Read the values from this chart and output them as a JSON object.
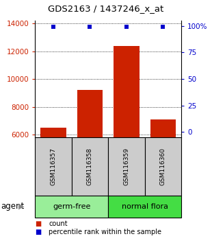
{
  "title": "GDS2163 / 1437246_x_at",
  "samples": [
    "GSM116357",
    "GSM116358",
    "GSM116359",
    "GSM116360"
  ],
  "counts": [
    6500,
    9200,
    12400,
    7100
  ],
  "percentiles": [
    99,
    99,
    99,
    99
  ],
  "ylim_left": [
    5800,
    14200
  ],
  "ylim_right": [
    -5,
    105
  ],
  "yticks_left": [
    6000,
    8000,
    10000,
    12000,
    14000
  ],
  "yticks_right": [
    0,
    25,
    50,
    75,
    100
  ],
  "bar_color": "#cc2200",
  "pct_color": "#0000cc",
  "groups": [
    {
      "label": "germ-free",
      "indices": [
        0,
        1
      ],
      "color": "#99ee99"
    },
    {
      "label": "normal flora",
      "indices": [
        2,
        3
      ],
      "color": "#44dd44"
    }
  ],
  "agent_label": "agent",
  "legend_count_label": "count",
  "legend_pct_label": "percentile rank within the sample",
  "sample_bg_color": "#cccccc",
  "bar_width": 0.7,
  "fig_width": 3.1,
  "fig_height": 3.54,
  "dpi": 100
}
